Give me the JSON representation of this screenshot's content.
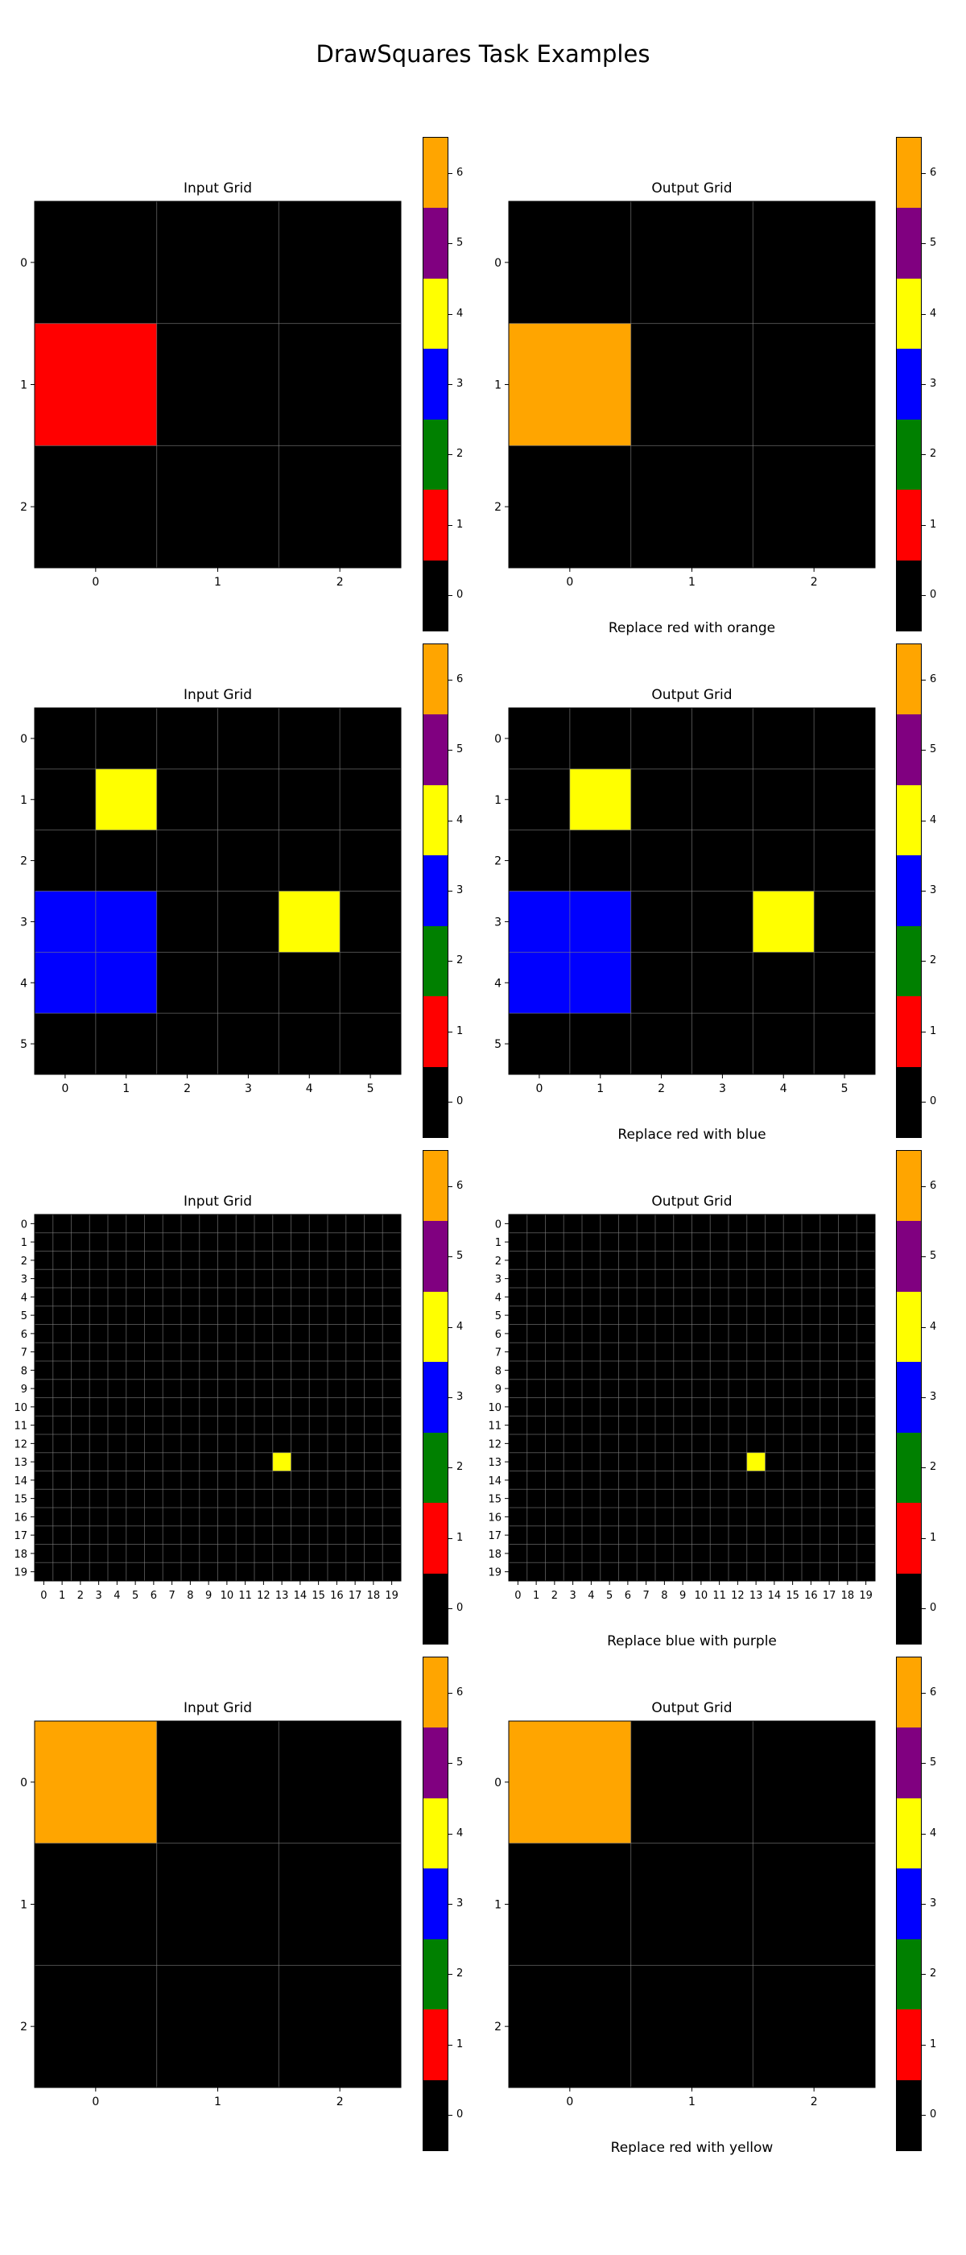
{
  "title": "DrawSquares Task Examples",
  "colors": {
    "0": "#000000",
    "1": "#ff0000",
    "2": "#008000",
    "3": "#0000ff",
    "4": "#ffff00",
    "5": "#800080",
    "6": "#ffa500"
  },
  "colorbar": {
    "ticks": [
      "0",
      "1",
      "2",
      "3",
      "4",
      "5",
      "6"
    ],
    "order_top_to_bottom": [
      "6",
      "5",
      "4",
      "3",
      "2",
      "1",
      "0"
    ]
  },
  "chart_data": [
    {
      "type": "heatmap",
      "caption": "Replace red with orange",
      "input": {
        "title": "Input Grid",
        "size": 3,
        "cells": [
          [
            0,
            0,
            0
          ],
          [
            1,
            0,
            0
          ],
          [
            0,
            0,
            0
          ]
        ]
      },
      "output": {
        "title": "Output Grid",
        "size": 3,
        "cells": [
          [
            0,
            0,
            0
          ],
          [
            6,
            0,
            0
          ],
          [
            0,
            0,
            0
          ]
        ]
      }
    },
    {
      "type": "heatmap",
      "caption": "Replace red with blue",
      "input": {
        "title": "Input Grid",
        "size": 6,
        "cells": [
          [
            0,
            0,
            0,
            0,
            0,
            0
          ],
          [
            0,
            4,
            0,
            0,
            0,
            0
          ],
          [
            0,
            0,
            0,
            0,
            0,
            0
          ],
          [
            3,
            3,
            0,
            0,
            4,
            0
          ],
          [
            3,
            3,
            0,
            0,
            0,
            0
          ],
          [
            0,
            0,
            0,
            0,
            0,
            0
          ]
        ]
      },
      "output": {
        "title": "Output Grid",
        "size": 6,
        "cells": [
          [
            0,
            0,
            0,
            0,
            0,
            0
          ],
          [
            0,
            4,
            0,
            0,
            0,
            0
          ],
          [
            0,
            0,
            0,
            0,
            0,
            0
          ],
          [
            3,
            3,
            0,
            0,
            4,
            0
          ],
          [
            3,
            3,
            0,
            0,
            0,
            0
          ],
          [
            0,
            0,
            0,
            0,
            0,
            0
          ]
        ]
      }
    },
    {
      "type": "heatmap",
      "caption": "Replace blue with purple",
      "input": {
        "title": "Input Grid",
        "size": 20,
        "nonzero": [
          {
            "row": 13,
            "col": 13,
            "value": 4
          }
        ]
      },
      "output": {
        "title": "Output Grid",
        "size": 20,
        "nonzero": [
          {
            "row": 13,
            "col": 13,
            "value": 4
          }
        ]
      }
    },
    {
      "type": "heatmap",
      "caption": "Replace red with yellow",
      "input": {
        "title": "Input Grid",
        "size": 3,
        "cells": [
          [
            6,
            0,
            0
          ],
          [
            0,
            0,
            0
          ],
          [
            0,
            0,
            0
          ]
        ]
      },
      "output": {
        "title": "Output Grid",
        "size": 3,
        "cells": [
          [
            6,
            0,
            0
          ],
          [
            0,
            0,
            0
          ],
          [
            0,
            0,
            0
          ]
        ]
      }
    }
  ]
}
